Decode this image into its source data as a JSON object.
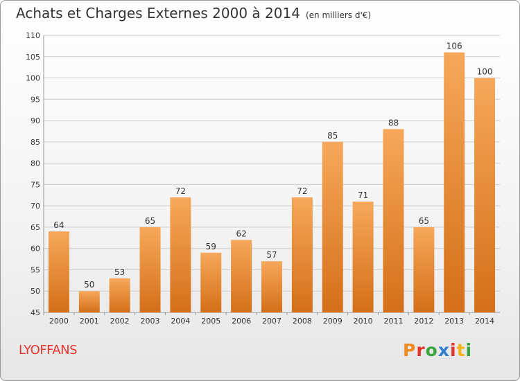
{
  "header": {
    "title": "Achats et Charges Externes 2000 à 2014",
    "subtitle": "(en milliers d'€)"
  },
  "footer": {
    "commune": "LYOFFANS",
    "logo_text": "Proxiti",
    "logo_colors": [
      "#f08a1c",
      "#e2362e",
      "#3aa641",
      "#2f7fd0",
      "#e2362e",
      "#f3b51b",
      "#3aa641"
    ]
  },
  "colors": {
    "bar_top": "#f6a85a",
    "bar_bottom": "#d46f18",
    "grid": "#cccccc",
    "axis_text": "#333333",
    "commune": "#e2362e"
  },
  "chart_data": {
    "type": "bar",
    "title": "Achats et Charges Externes 2000 à 2014",
    "subtitle": "(en milliers d'€)",
    "categories": [
      "2000",
      "2001",
      "2002",
      "2003",
      "2004",
      "2005",
      "2006",
      "2007",
      "2008",
      "2009",
      "2010",
      "2011",
      "2012",
      "2013",
      "2014"
    ],
    "values": [
      64,
      50,
      53,
      65,
      72,
      59,
      62,
      57,
      72,
      85,
      71,
      88,
      65,
      106,
      100
    ],
    "ylim": [
      45,
      110
    ],
    "yticks": [
      45,
      50,
      55,
      60,
      65,
      70,
      75,
      80,
      85,
      90,
      95,
      100,
      105,
      110
    ],
    "grid": true,
    "xlabel": "",
    "ylabel": ""
  }
}
